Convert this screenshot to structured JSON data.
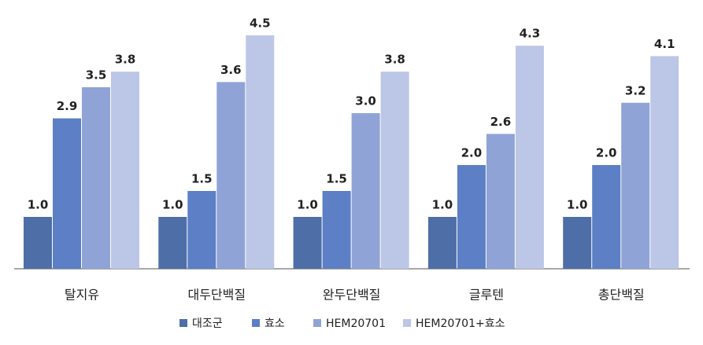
{
  "chart_data": {
    "type": "bar",
    "categories": [
      "탈지유",
      "대두단백질",
      "완두단백질",
      "글루텐",
      "총단백질"
    ],
    "series": [
      {
        "name": "대조군",
        "color": "#4e6ea8",
        "values": [
          1.0,
          1.0,
          1.0,
          1.0,
          1.0
        ],
        "value_labels": [
          "1.0",
          "1.0",
          "1.0",
          "1.0",
          "1.0"
        ]
      },
      {
        "name": "효소",
        "color": "#5c7fc5",
        "values": [
          2.9,
          1.5,
          1.5,
          2.0,
          2.0
        ],
        "value_labels": [
          "2.9",
          "1.5",
          "1.5",
          "2.0",
          "2.0"
        ]
      },
      {
        "name": "HEM20701",
        "color": "#8fa3d7",
        "values": [
          3.5,
          3.6,
          3.0,
          2.6,
          3.2
        ],
        "value_labels": [
          "3.5",
          "3.6",
          "3.0",
          "2.6",
          "3.2"
        ]
      },
      {
        "name": "HEM20701+효소",
        "color": "#bcc6e6",
        "values": [
          3.8,
          4.5,
          3.8,
          4.3,
          4.1
        ],
        "value_labels": [
          "3.8",
          "4.5",
          "3.8",
          "4.3",
          "4.1"
        ]
      }
    ],
    "legend": "bottom"
  }
}
